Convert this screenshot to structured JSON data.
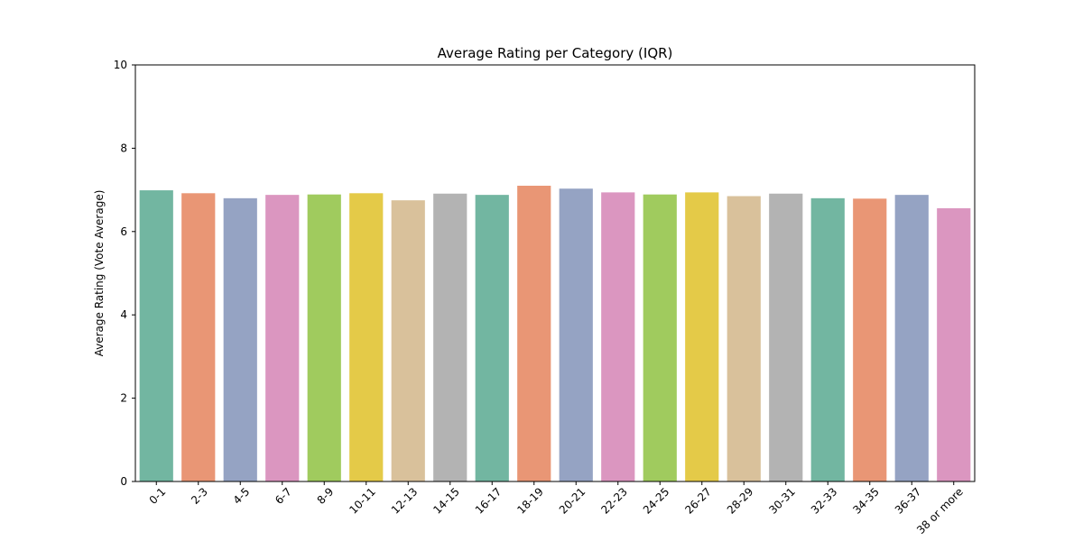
{
  "chart_data": {
    "type": "bar",
    "title": "Average Rating per Category (IQR)",
    "xlabel": "",
    "ylabel": "Average Rating (Vote Average)",
    "ylim": [
      0,
      10
    ],
    "yticks": [
      0,
      2,
      4,
      6,
      8,
      10
    ],
    "grid": false,
    "categories": [
      "0-1",
      "2-3",
      "4-5",
      "6-7",
      "8-9",
      "10-11",
      "12-13",
      "14-15",
      "16-17",
      "18-19",
      "20-21",
      "22-23",
      "24-25",
      "26-27",
      "28-29",
      "30-31",
      "32-33",
      "34-35",
      "36-37",
      "38 or more"
    ],
    "values": [
      6.99,
      6.92,
      6.8,
      6.88,
      6.89,
      6.92,
      6.75,
      6.91,
      6.88,
      7.1,
      7.03,
      6.94,
      6.89,
      6.94,
      6.85,
      6.91,
      6.8,
      6.79,
      6.88,
      6.56
    ],
    "colors": [
      "#72b6a1",
      "#e99675",
      "#95a3c3",
      "#db96c0",
      "#a0cb5e",
      "#e4ca48",
      "#d9c19b",
      "#b3b3b3",
      "#72b6a1",
      "#e99675",
      "#95a3c3",
      "#db96c0",
      "#a0cb5e",
      "#e4ca48",
      "#d9c19b",
      "#b3b3b3",
      "#72b6a1",
      "#e99675",
      "#95a3c3",
      "#db96c0"
    ]
  }
}
